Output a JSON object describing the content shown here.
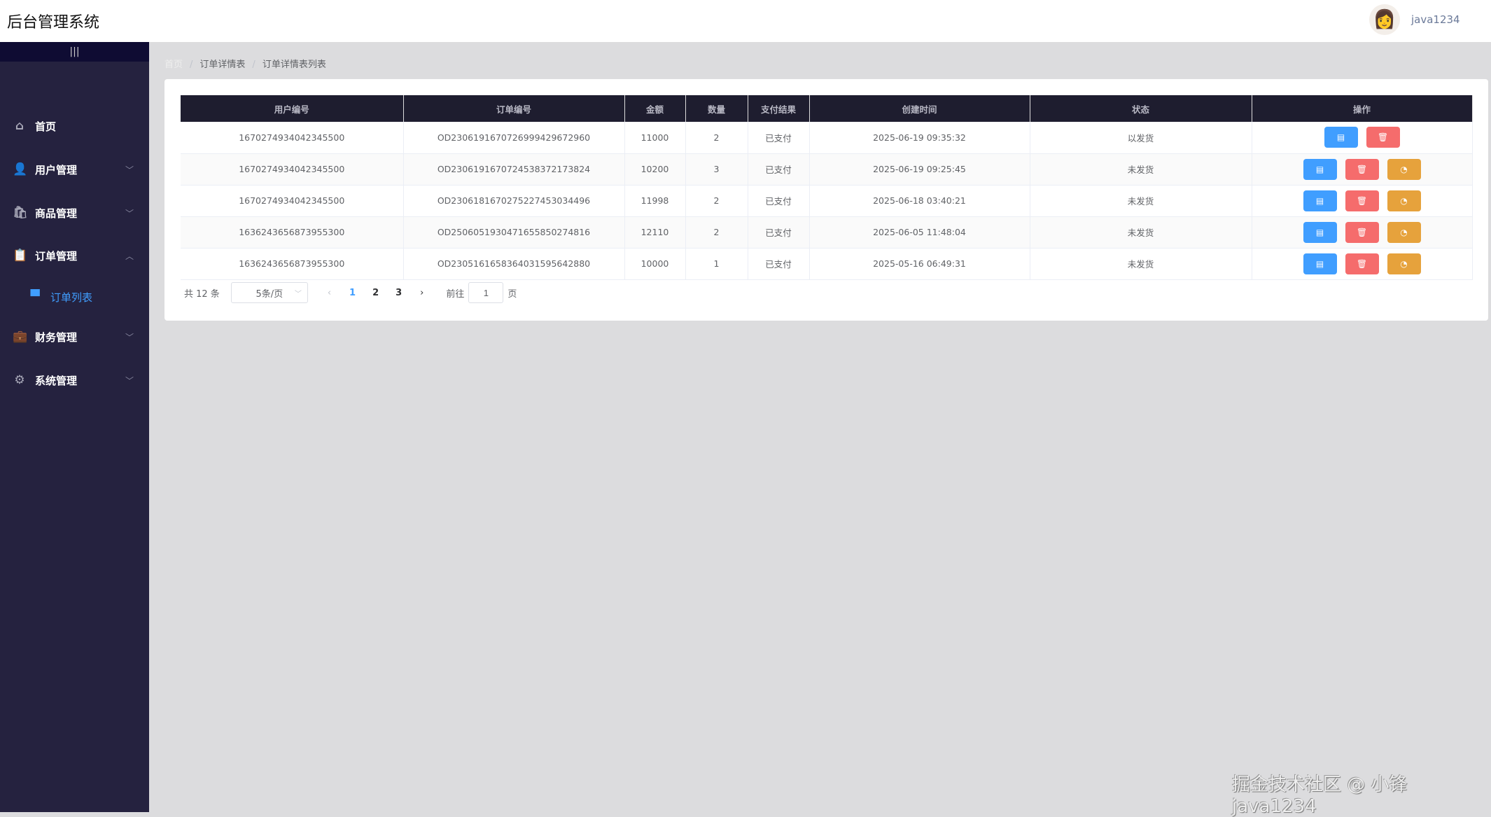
{
  "header": {
    "title": "后台管理系统",
    "username": "java1234"
  },
  "sidebar": {
    "toggle": "|||",
    "items": [
      {
        "label": "首页",
        "icon": "home-icon",
        "glyph": "⌂"
      },
      {
        "label": "用户管理",
        "icon": "user-icon",
        "glyph": "👤",
        "chevron": "﹀"
      },
      {
        "label": "商品管理",
        "icon": "bag-icon",
        "glyph": "🛍",
        "chevron": "﹀"
      },
      {
        "label": "订单管理",
        "icon": "clipboard-icon",
        "glyph": "📋",
        "chevron": "︿"
      },
      {
        "label": "订单列表",
        "icon": "shop-icon",
        "glyph": "▀",
        "sub": true,
        "active": true
      },
      {
        "label": "财务管理",
        "icon": "briefcase-icon",
        "glyph": "💼",
        "chevron": "﹀"
      },
      {
        "label": "系统管理",
        "icon": "gear-icon",
        "glyph": "⚙",
        "chevron": "﹀"
      }
    ]
  },
  "breadcrumb": [
    "首页",
    "订单详情表",
    "订单详情表列表"
  ],
  "table": {
    "columns": [
      "用户编号",
      "订单编号",
      "金额",
      "数量",
      "支付结果",
      "创建时间",
      "状态",
      "操作"
    ],
    "rows": [
      [
        "1670274934042345500",
        "OD23061916707269994296729​60",
        "11000",
        "2",
        "已支付",
        "2025-06-19 09:35:32",
        "以发货"
      ],
      [
        "1670274934042345500",
        "OD230619167072453837217382​4",
        "10200",
        "3",
        "已支付",
        "2025-06-19 09:25:45",
        "未发货"
      ],
      [
        "1670274934042345500",
        "OD2306181670275227453034496",
        "11998",
        "2",
        "已支付",
        "2025-06-18 03:40:21",
        "未发货"
      ],
      [
        "1636243656873955300",
        "OD2506051930471655850274816",
        "12110",
        "2",
        "已支付",
        "2025-06-05 11:48:04",
        "未发货"
      ],
      [
        "1636243656873955300",
        "OD2305161658364031595642880",
        "10000",
        "1",
        "已支付",
        "2025-05-16 06:49:31",
        "未发货"
      ]
    ],
    "actions": {
      "edit_icon": "edit-icon",
      "delete_icon": "delete-icon",
      "ship_icon": "ship-icon"
    }
  },
  "pagination": {
    "total": "共 12 条",
    "page_size": "5条/页",
    "pages": [
      "1",
      "2",
      "3"
    ],
    "current": "1",
    "goto_label": "前往",
    "goto_value": "1",
    "page_suffix": "页"
  },
  "colors": {
    "sidebar": "#25223f",
    "header_row": "#1e1d2f",
    "primary": "#409eff",
    "danger": "#f56c6c",
    "warning": "#e6a23c"
  },
  "watermark": "掘金技术社区 @ 小锋java1234"
}
